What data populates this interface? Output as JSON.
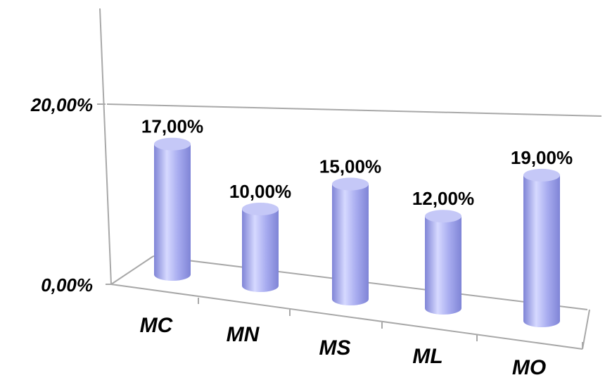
{
  "chart_data": {
    "type": "bar",
    "style": "3d-cylinder",
    "categories": [
      "MC",
      "MN",
      "MS",
      "ML",
      "MO"
    ],
    "values": [
      17.0,
      10.0,
      15.0,
      12.0,
      19.0
    ],
    "data_labels": [
      "17,00%",
      "10,00%",
      "15,00%",
      "12,00%",
      "19,00%"
    ],
    "yticks": [
      {
        "value": 0,
        "label": "0,00%"
      },
      {
        "value": 20,
        "label": "20,00%"
      }
    ],
    "ylim": [
      0,
      20
    ],
    "title": "",
    "xlabel": "",
    "ylabel": "",
    "grid": false,
    "legend": "none",
    "colors": {
      "bar_light": "#d6d9ff",
      "bar_mid": "#a9adf0",
      "bar_dark": "#7f84d6",
      "bar_top": "#c5c8f7",
      "axis": "#a8a8a8"
    }
  }
}
